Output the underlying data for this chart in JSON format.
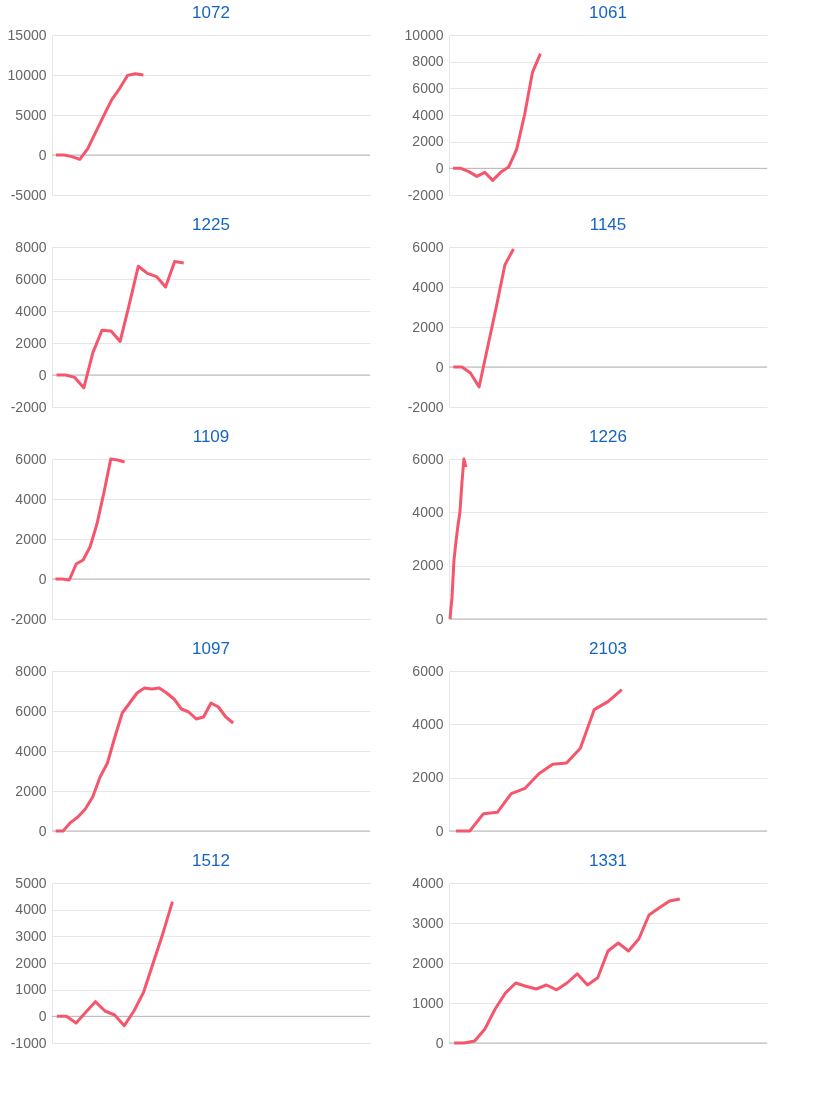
{
  "chart_data": [
    {
      "type": "line",
      "title": "1072",
      "categories": [
        null,
        null,
        null,
        null,
        null,
        null,
        null,
        null,
        null,
        null,
        null,
        null,
        null,
        null,
        null,
        null,
        null,
        null,
        null,
        null,
        null,
        null,
        null,
        null,
        null,
        null,
        null,
        null,
        null,
        null,
        null,
        null,
        null,
        null,
        null,
        null,
        null,
        null,
        null,
        null
      ],
      "series": [
        {
          "color": "#f5566c",
          "values": [
            0,
            0,
            -200,
            -550,
            800,
            2850,
            4900,
            6900,
            8300,
            9950,
            10150,
            10000,
            null,
            null,
            null,
            null,
            null,
            null,
            null,
            null,
            null,
            null,
            null,
            null,
            null,
            null,
            null,
            null,
            null,
            null,
            null,
            null,
            null,
            null,
            null,
            null,
            null,
            null,
            null,
            null
          ]
        }
      ],
      "ylim": [
        -5000,
        15000
      ],
      "yticks": [
        -5000,
        0,
        5000,
        10000,
        15000
      ],
      "grid": "y",
      "tick_labels": "y",
      "ref_lines": [
        {
          "axis": "y",
          "value": 0,
          "color": "#b5b5b5"
        }
      ]
    },
    {
      "type": "line",
      "title": "1061",
      "categories": [
        null,
        null,
        null,
        null,
        null,
        null,
        null,
        null,
        null,
        null,
        null,
        null,
        null,
        null,
        null,
        null,
        null,
        null,
        null,
        null,
        null,
        null,
        null,
        null,
        null,
        null,
        null,
        null,
        null,
        null,
        null,
        null,
        null,
        null,
        null,
        null,
        null,
        null,
        null,
        null
      ],
      "series": [
        {
          "color": "#f5566c",
          "values": [
            0,
            0,
            -250,
            -600,
            -300,
            -900,
            -300,
            100,
            1400,
            4000,
            7200,
            8600,
            null,
            null,
            null,
            null,
            null,
            null,
            null,
            null,
            null,
            null,
            null,
            null,
            null,
            null,
            null,
            null,
            null,
            null,
            null,
            null,
            null,
            null,
            null,
            null,
            null,
            null,
            null,
            null
          ]
        }
      ],
      "ylim": [
        -2000,
        10000
      ],
      "yticks": [
        -2000,
        0,
        2000,
        4000,
        6000,
        8000,
        10000
      ],
      "grid": "y",
      "tick_labels": "y",
      "ref_lines": [
        {
          "axis": "y",
          "value": 0,
          "color": "#b5b5b5"
        }
      ]
    },
    {
      "type": "line",
      "title": "1225",
      "categories": [
        null,
        null,
        null,
        null,
        null,
        null,
        null,
        null,
        null,
        null,
        null,
        null,
        null,
        null,
        null,
        null,
        null,
        null,
        null,
        null,
        null,
        null,
        null,
        null,
        null,
        null,
        null,
        null,
        null,
        null,
        null,
        null,
        null,
        null,
        null
      ],
      "series": [
        {
          "color": "#f5566c",
          "values": [
            0,
            0,
            -150,
            -800,
            1400,
            2800,
            2750,
            2100,
            4400,
            6800,
            6350,
            6150,
            5500,
            7100,
            7000,
            null,
            null,
            null,
            null,
            null,
            null,
            null,
            null,
            null,
            null,
            null,
            null,
            null,
            null,
            null,
            null,
            null,
            null,
            null,
            null
          ]
        }
      ],
      "ylim": [
        -2000,
        8000
      ],
      "yticks": [
        -2000,
        0,
        2000,
        4000,
        6000,
        8000
      ],
      "grid": "y",
      "tick_labels": "y",
      "ref_lines": [
        {
          "axis": "y",
          "value": 0,
          "color": "#b5b5b5"
        }
      ]
    },
    {
      "type": "line",
      "title": "1145",
      "categories": [
        null,
        null,
        null,
        null,
        null,
        null,
        null,
        null,
        null,
        null,
        null,
        null,
        null,
        null,
        null,
        null,
        null,
        null,
        null,
        null,
        null,
        null,
        null,
        null,
        null,
        null,
        null,
        null,
        null,
        null,
        null,
        null,
        null,
        null,
        null,
        null,
        null
      ],
      "series": [
        {
          "color": "#f5566c",
          "values": [
            0,
            0,
            -300,
            -1000,
            1000,
            3000,
            5100,
            5900,
            null,
            null,
            null,
            null,
            null,
            null,
            null,
            null,
            null,
            null,
            null,
            null,
            null,
            null,
            null,
            null,
            null,
            null,
            null,
            null,
            null,
            null,
            null,
            null,
            null,
            null,
            null,
            null,
            null
          ]
        }
      ],
      "ylim": [
        -2000,
        6000
      ],
      "yticks": [
        -2000,
        0,
        2000,
        4000,
        6000
      ],
      "grid": "y",
      "tick_labels": "y",
      "ref_lines": [
        {
          "axis": "y",
          "value": 0,
          "color": "#b5b5b5"
        }
      ]
    },
    {
      "type": "line",
      "title": "1109",
      "categories": [
        null,
        null,
        null,
        null,
        null,
        null,
        null,
        null,
        null,
        null,
        null,
        null,
        null,
        null,
        null,
        null,
        null,
        null,
        null,
        null,
        null,
        null,
        null,
        null,
        null,
        null,
        null,
        null,
        null,
        null,
        null,
        null,
        null,
        null,
        null,
        null,
        null,
        null,
        null,
        null,
        null,
        null,
        null,
        null,
        null,
        null
      ],
      "series": [
        {
          "color": "#f5566c",
          "values": [
            0,
            0,
            -50,
            750,
            950,
            1600,
            2750,
            4300,
            6000,
            5950,
            5850,
            null,
            null,
            null,
            null,
            null,
            null,
            null,
            null,
            null,
            null,
            null,
            null,
            null,
            null,
            null,
            null,
            null,
            null,
            null,
            null,
            null,
            null,
            null,
            null,
            null,
            null,
            null,
            null,
            null,
            null,
            null,
            null,
            null,
            null,
            null
          ]
        }
      ],
      "ylim": [
        -2000,
        6000
      ],
      "yticks": [
        -2000,
        0,
        2000,
        4000,
        6000
      ],
      "grid": "y",
      "tick_labels": "y",
      "ref_lines": [
        {
          "axis": "y",
          "value": 0,
          "color": "#b5b5b5"
        }
      ]
    },
    {
      "type": "line",
      "title": "1226",
      "categories": [
        null,
        null,
        null,
        null,
        null,
        null,
        null,
        null,
        null,
        null,
        null,
        null,
        null,
        null,
        null,
        null,
        null,
        null,
        null,
        null,
        null,
        null,
        null,
        null,
        null,
        null,
        null,
        null,
        null,
        null,
        null,
        null,
        null,
        null,
        null,
        null,
        null,
        null,
        null,
        null,
        null,
        null,
        null,
        null,
        null,
        null,
        null,
        null,
        null,
        null,
        null,
        null,
        null,
        null,
        null,
        null,
        null,
        null,
        null,
        null,
        null,
        null,
        null,
        null,
        null,
        null,
        null,
        null,
        null,
        null,
        null,
        null,
        null,
        null,
        null,
        null,
        null,
        null,
        null,
        null,
        null,
        null,
        null,
        null,
        null,
        null,
        null,
        null,
        null,
        null,
        null,
        null,
        null,
        null,
        null,
        null,
        null,
        null,
        null,
        null,
        null,
        null,
        null,
        null,
        null,
        null,
        null,
        null,
        null,
        null,
        null,
        null,
        null,
        null,
        null,
        null,
        null,
        null,
        null,
        null,
        null,
        null,
        null,
        null,
        null,
        null,
        null,
        null,
        null,
        null,
        null,
        null,
        null,
        null,
        null,
        null,
        null,
        null,
        null,
        null,
        null,
        null,
        null,
        null,
        null,
        null,
        null,
        null,
        null,
        null,
        null,
        null,
        null,
        null,
        null,
        null,
        null,
        null,
        null,
        null
      ],
      "series": [
        {
          "color": "#f5566c",
          "values": [
            0,
            800,
            2200,
            2900,
            3500,
            4000,
            5100,
            6000,
            5700,
            null,
            null,
            null,
            null,
            null,
            null,
            null,
            null,
            null,
            null,
            null,
            null,
            null,
            null,
            null,
            null,
            null,
            null,
            null,
            null,
            null,
            null,
            null,
            null,
            null,
            null,
            null,
            null,
            null,
            null,
            null,
            null,
            null,
            null,
            null,
            null,
            null,
            null,
            null,
            null,
            null,
            null,
            null,
            null,
            null,
            null,
            null,
            null,
            null,
            null,
            null,
            null,
            null,
            null,
            null,
            null,
            null,
            null,
            null,
            null,
            null,
            null,
            null,
            null,
            null,
            null,
            null,
            null,
            null,
            null,
            null,
            null,
            null,
            null,
            null,
            null,
            null,
            null,
            null,
            null,
            null,
            null,
            null,
            null,
            null,
            null,
            null,
            null,
            null,
            null,
            null,
            null,
            null,
            null,
            null,
            null,
            null,
            null,
            null,
            null,
            null,
            null,
            null,
            null,
            null,
            null,
            null,
            null,
            null,
            null,
            null,
            null,
            null,
            null,
            null,
            null,
            null,
            null,
            null,
            null,
            null,
            null,
            null,
            null,
            null,
            null,
            null,
            null,
            null,
            null,
            null,
            null,
            null,
            null,
            null,
            null,
            null,
            null,
            null,
            null,
            null,
            null,
            null,
            null,
            null,
            null,
            null,
            null,
            null,
            null,
            null
          ]
        }
      ],
      "ylim": [
        0,
        6000
      ],
      "yticks": [
        0,
        2000,
        4000,
        6000
      ],
      "grid": "y",
      "tick_labels": "y",
      "ref_lines": [
        {
          "axis": "y",
          "value": 0,
          "color": "#b5b5b5"
        }
      ]
    },
    {
      "type": "line",
      "title": "1097",
      "categories": [
        null,
        null,
        null,
        null,
        null,
        null,
        null,
        null,
        null,
        null,
        null,
        null,
        null,
        null,
        null,
        null,
        null,
        null,
        null,
        null,
        null,
        null,
        null,
        null,
        null,
        null,
        null,
        null,
        null,
        null,
        null,
        null,
        null,
        null,
        null,
        null,
        null,
        null,
        null,
        null,
        null,
        null,
        null
      ],
      "series": [
        {
          "color": "#f5566c",
          "values": [
            0,
            0,
            420,
            700,
            1100,
            1700,
            2700,
            3400,
            4700,
            5900,
            6400,
            6900,
            7150,
            7100,
            7150,
            6900,
            6600,
            6100,
            5950,
            5600,
            5700,
            6400,
            6200,
            5700,
            5400,
            null,
            null,
            null,
            null,
            null,
            null,
            null,
            null,
            null,
            null,
            null,
            null,
            null,
            null,
            null,
            null,
            null,
            null
          ]
        }
      ],
      "ylim": [
        0,
        8000
      ],
      "yticks": [
        0,
        2000,
        4000,
        6000,
        8000
      ],
      "grid": "y",
      "tick_labels": "y",
      "ref_lines": [
        {
          "axis": "y",
          "value": 0,
          "color": "#b5b5b5"
        }
      ]
    },
    {
      "type": "line",
      "title": "2103",
      "categories": [
        null,
        null,
        null,
        null,
        null,
        null,
        null,
        null,
        null,
        null,
        null,
        null,
        null,
        null,
        null,
        null,
        null,
        null,
        null,
        null,
        null,
        null,
        null
      ],
      "series": [
        {
          "color": "#f5566c",
          "values": [
            0,
            0,
            650,
            700,
            1400,
            1600,
            2150,
            2500,
            2550,
            3100,
            4550,
            4850,
            5300,
            null,
            null,
            null,
            null,
            null,
            null,
            null,
            null,
            null,
            null
          ]
        }
      ],
      "ylim": [
        0,
        6000
      ],
      "yticks": [
        0,
        2000,
        4000,
        6000
      ],
      "grid": "y",
      "tick_labels": "y",
      "ref_lines": [
        {
          "axis": "y",
          "value": 0,
          "color": "#b5b5b5"
        }
      ]
    },
    {
      "type": "line",
      "title": "1512",
      "categories": [
        null,
        null,
        null,
        null,
        null,
        null,
        null,
        null,
        null,
        null,
        null,
        null,
        null,
        null,
        null,
        null,
        null,
        null,
        null,
        null,
        null,
        null,
        null,
        null,
        null,
        null,
        null,
        null,
        null,
        null,
        null,
        null,
        null
      ],
      "series": [
        {
          "color": "#f5566c",
          "values": [
            0,
            0,
            -250,
            150,
            550,
            200,
            50,
            -350,
            200,
            900,
            2000,
            3100,
            4300,
            null,
            null,
            null,
            null,
            null,
            null,
            null,
            null,
            null,
            null,
            null,
            null,
            null,
            null,
            null,
            null,
            null,
            null,
            null,
            null
          ]
        }
      ],
      "ylim": [
        -1000,
        5000
      ],
      "yticks": [
        -1000,
        0,
        1000,
        2000,
        3000,
        4000,
        5000
      ],
      "grid": "y",
      "tick_labels": "y",
      "ref_lines": [
        {
          "axis": "y",
          "value": 0,
          "color": "#b5b5b5"
        }
      ]
    },
    {
      "type": "line",
      "title": "1331",
      "categories": [
        null,
        null,
        null,
        null,
        null,
        null,
        null,
        null,
        null,
        null,
        null,
        null,
        null,
        null,
        null,
        null,
        null,
        null,
        null,
        null,
        null,
        null,
        null,
        null,
        null,
        null,
        null,
        null,
        null,
        null,
        null
      ],
      "series": [
        {
          "color": "#f5566c",
          "values": [
            0,
            0,
            50,
            350,
            850,
            1250,
            1500,
            1420,
            1350,
            1450,
            1330,
            1500,
            1730,
            1450,
            1630,
            2300,
            2500,
            2300,
            2600,
            3200,
            3380,
            3550,
            3600,
            null,
            null,
            null,
            null,
            null,
            null,
            null,
            null
          ]
        }
      ],
      "ylim": [
        0,
        4000
      ],
      "yticks": [
        0,
        1000,
        2000,
        3000,
        4000
      ],
      "grid": "y",
      "tick_labels": "y",
      "ref_lines": [
        {
          "axis": "y",
          "value": 0,
          "color": "#b5b5b5"
        }
      ]
    }
  ]
}
